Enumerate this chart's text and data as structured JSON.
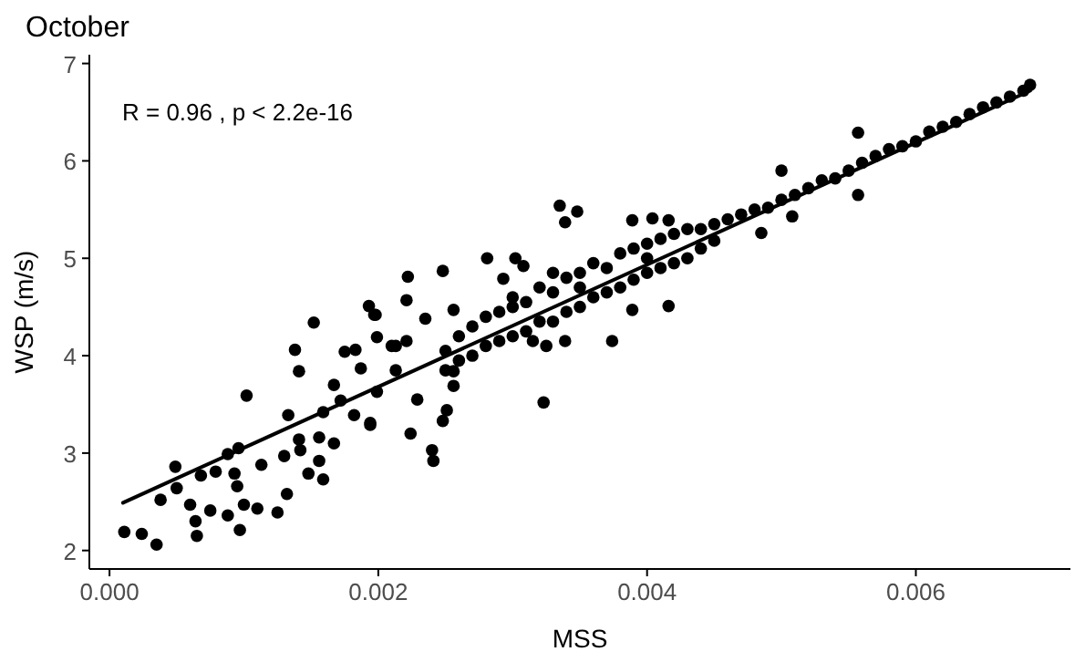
{
  "chart_data": {
    "type": "scatter",
    "title": "October",
    "xlabel": "MSS",
    "ylabel": "WSP (m/s)",
    "annotations": [
      "R = 0.96 , p < 2.2e-16"
    ],
    "xlim": [
      -0.00015,
      0.00715
    ],
    "ylim": [
      1.81,
      7.09
    ],
    "xticks": [
      {
        "value": 0,
        "label": "0.000"
      },
      {
        "value": 0.002,
        "label": "0.002"
      },
      {
        "value": 0.004,
        "label": "0.004"
      },
      {
        "value": 0.006,
        "label": "0.006"
      }
    ],
    "yticks": [
      2,
      3,
      4,
      5,
      6,
      7
    ],
    "grid": false,
    "marker": "circle",
    "series": [
      {
        "color": "#000000",
        "x": [
          0.00011,
          0.00024,
          0.00035,
          0.00038,
          0.00049,
          0.0005,
          0.0006,
          0.00064,
          0.00065,
          0.00068,
          0.00075,
          0.00079,
          0.00088,
          0.00088,
          0.00093,
          0.00095,
          0.00097,
          0.001,
          0.00102,
          0.00096,
          0.0011,
          0.00113,
          0.00125,
          0.0013,
          0.00132,
          0.00133,
          0.00138,
          0.00141,
          0.00141,
          0.00142,
          0.00148,
          0.00152,
          0.00156,
          0.00159,
          0.00156,
          0.00159,
          0.00167,
          0.00167,
          0.00172,
          0.00175,
          0.00183,
          0.00182,
          0.00187,
          0.00193,
          0.00194,
          0.00198,
          0.00199,
          0.00199,
          0.00213,
          0.00213,
          0.00221,
          0.00222,
          0.00224,
          0.00229,
          0.0024,
          0.00241,
          0.00248,
          0.00251,
          0.00194,
          0.00248,
          0.00256,
          0.00256,
          0.00281,
          0.00302,
          0.00308,
          0.00323,
          0.00325,
          0.00335,
          0.00348,
          0.00339,
          0.00339,
          0.00374,
          0.00389,
          0.00404,
          0.00416,
          0.00389,
          0.00416,
          0.00315,
          0.00293,
          0.0033,
          0.00221,
          0.00235,
          0.00197,
          0.0021,
          0.00256,
          0.0025,
          0.0025,
          0.0026,
          0.0026,
          0.0027,
          0.0027,
          0.0028,
          0.0028,
          0.0029,
          0.0029,
          0.003,
          0.003,
          0.003,
          0.0031,
          0.0031,
          0.0032,
          0.0032,
          0.0033,
          0.0033,
          0.0034,
          0.0034,
          0.0035,
          0.0035,
          0.0035,
          0.0036,
          0.0036,
          0.0037,
          0.0037,
          0.0038,
          0.0038,
          0.0039,
          0.0039,
          0.004,
          0.004,
          0.004,
          0.0041,
          0.0041,
          0.0042,
          0.0042,
          0.0043,
          0.0043,
          0.0044,
          0.0044,
          0.0045,
          0.0045,
          0.0046,
          0.0047,
          0.0048,
          0.0049,
          0.005,
          0.0051,
          0.0052,
          0.0053,
          0.0054,
          0.0055,
          0.0056,
          0.0057,
          0.0058,
          0.0059,
          0.006,
          0.0061,
          0.0062,
          0.0063,
          0.0064,
          0.0065,
          0.0066,
          0.0067,
          0.0068,
          0.00685,
          0.005,
          0.00557,
          0.00557,
          0.00508,
          0.00485
        ],
        "values": [
          2.19,
          2.17,
          2.06,
          2.52,
          2.86,
          2.64,
          2.47,
          2.3,
          2.15,
          2.77,
          2.41,
          2.81,
          2.99,
          2.36,
          2.79,
          2.66,
          2.21,
          2.47,
          3.59,
          3.05,
          2.43,
          2.88,
          2.39,
          2.97,
          2.58,
          3.39,
          4.06,
          3.84,
          3.14,
          3.03,
          2.79,
          4.34,
          2.92,
          2.73,
          3.16,
          3.42,
          3.1,
          3.7,
          3.54,
          4.04,
          4.06,
          3.39,
          3.87,
          4.51,
          3.31,
          4.42,
          3.63,
          4.19,
          4.1,
          3.85,
          4.57,
          4.81,
          3.2,
          3.55,
          3.03,
          2.92,
          3.33,
          3.44,
          3.29,
          4.87,
          4.47,
          3.69,
          5.0,
          5.0,
          4.92,
          3.52,
          4.1,
          5.54,
          5.48,
          5.37,
          4.15,
          4.15,
          5.39,
          5.41,
          5.39,
          4.47,
          4.51,
          4.15,
          4.79,
          4.85,
          4.15,
          4.38,
          4.42,
          4.1,
          3.84,
          4.05,
          3.85,
          4.2,
          3.95,
          4.3,
          4.0,
          4.4,
          4.1,
          4.45,
          4.15,
          4.5,
          4.2,
          4.6,
          4.55,
          4.25,
          4.7,
          4.35,
          4.65,
          4.35,
          4.8,
          4.45,
          4.85,
          4.5,
          4.7,
          4.95,
          4.6,
          4.9,
          4.65,
          5.05,
          4.7,
          5.1,
          4.78,
          5.15,
          4.85,
          5.0,
          5.2,
          4.9,
          5.25,
          4.95,
          5.3,
          5.0,
          5.3,
          5.1,
          5.35,
          5.18,
          5.4,
          5.45,
          5.5,
          5.52,
          5.6,
          5.65,
          5.72,
          5.8,
          5.82,
          5.9,
          5.98,
          6.05,
          6.12,
          6.15,
          6.2,
          6.3,
          6.35,
          6.4,
          6.48,
          6.55,
          6.6,
          6.66,
          6.72,
          6.78,
          5.9,
          6.29,
          5.65,
          5.43,
          5.26
        ]
      },
      {
        "type": "line",
        "color": "#000000",
        "x": [
          0.0001,
          0.00685
        ],
        "values": [
          2.49,
          6.72
        ],
        "marker": "none",
        "line_style": "solid"
      }
    ]
  }
}
